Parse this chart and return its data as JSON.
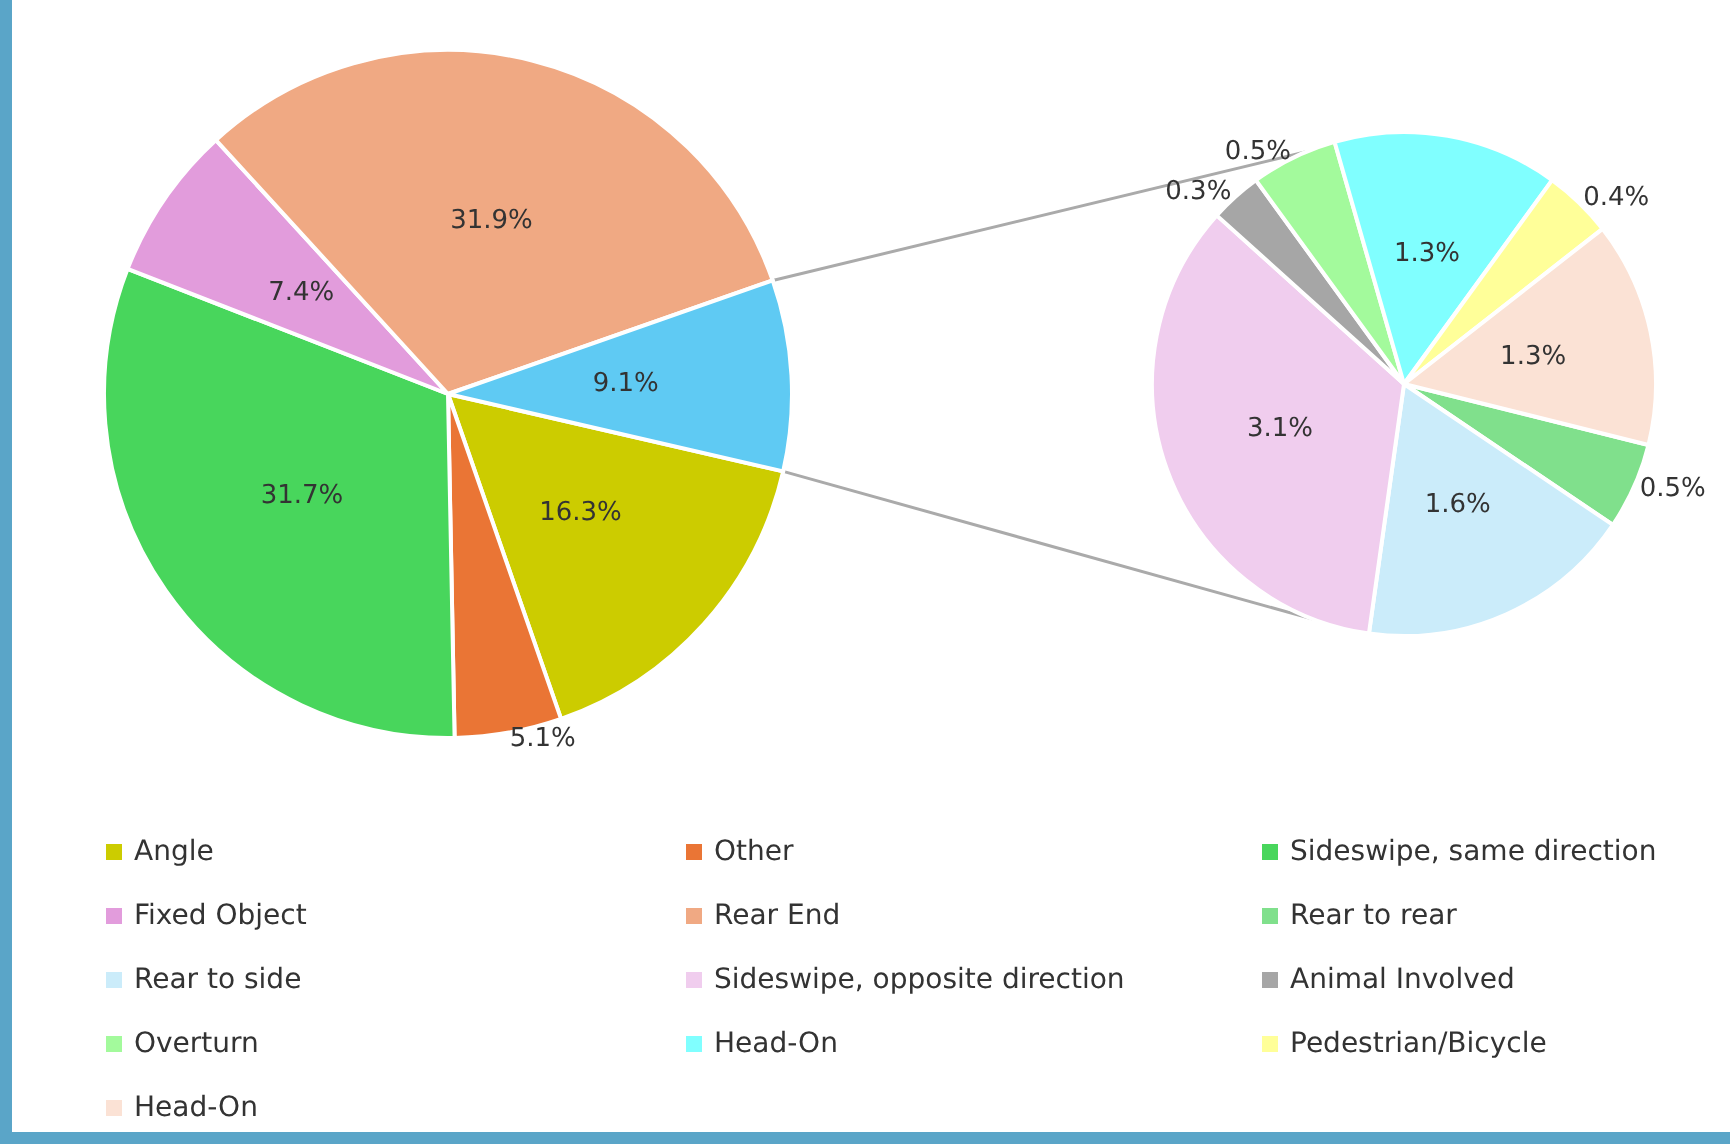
{
  "chart_data": [
    {
      "type": "pie",
      "categories": [
        "Angle",
        "Other",
        "Sideswipe, same direction",
        "Fixed Object",
        "Rear End",
        null
      ],
      "values": [
        16.3,
        5.1,
        31.7,
        7.4,
        31.9,
        9.1
      ],
      "colors": [
        "#cccc00",
        "#ea7535",
        "#48d65c",
        "#e29cdc",
        "#f0a983",
        "#5fcaf3"
      ],
      "value_labels": [
        "16.3%",
        "5.1%",
        "31.7%",
        "7.4%",
        "31.9%",
        "9.1%"
      ],
      "legend": "bottom"
    },
    {
      "type": "pie",
      "categories": [
        "Rear to rear",
        "Rear to side",
        "Sideswipe, opposite direction",
        "Animal Involved",
        "Overturn",
        "Head-On",
        "Pedestrian/Bicycle",
        "Head-On"
      ],
      "values": [
        0.5,
        1.6,
        3.1,
        0.3,
        0.5,
        1.3,
        0.4,
        1.3
      ],
      "colors": [
        "#80e08c",
        "#cbecfa",
        "#f0cdee",
        "#a6a6a6",
        "#a3fa9c",
        "#80ffff",
        "#ffff99",
        "#fbe2d5"
      ],
      "value_labels": [
        "0.5%",
        "1.6%",
        "3.1%",
        "0.3%",
        "0.5%",
        "1.3%",
        "0.4%",
        "1.3%"
      ],
      "legend": "bottom"
    }
  ]
}
